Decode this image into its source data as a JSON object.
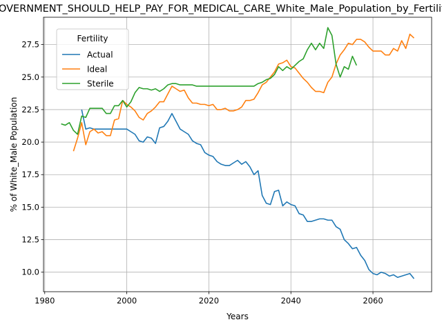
{
  "chart_data": {
    "type": "line",
    "title": "GOVERNMENT_SHOULD_HELP_PAY_FOR_MEDICAL_CARE_White_Male_Population_by_Fertility",
    "xlabel": "Years",
    "ylabel": "% of White_Male Population",
    "xlim": [
      1979.7,
      2074.3
    ],
    "ylim": [
      8.5,
      29.6
    ],
    "xticks": [
      1980,
      2000,
      2020,
      2040,
      2060
    ],
    "yticks": [
      10.0,
      12.5,
      15.0,
      17.5,
      20.0,
      22.5,
      25.0,
      27.5
    ],
    "grid": true,
    "legend": {
      "title": "Fertility",
      "position": "upper-left"
    },
    "series": [
      {
        "name": "Actual",
        "color": "#1f77b4",
        "points": [
          [
            1989,
            22.5
          ],
          [
            1990,
            21.0
          ],
          [
            1991,
            21.1
          ],
          [
            1992,
            21.0
          ],
          [
            1993,
            21.0
          ],
          [
            1994,
            21.0
          ],
          [
            1995,
            21.0
          ],
          [
            1996,
            21.0
          ],
          [
            1997,
            21.0
          ],
          [
            1998,
            21.0
          ],
          [
            1999,
            21.0
          ],
          [
            2000,
            21.0
          ],
          [
            2001,
            20.8
          ],
          [
            2002,
            20.6
          ],
          [
            2003,
            20.1
          ],
          [
            2004,
            20.0
          ],
          [
            2005,
            20.4
          ],
          [
            2006,
            20.3
          ],
          [
            2007,
            19.9
          ],
          [
            2008,
            21.1
          ],
          [
            2009,
            21.2
          ],
          [
            2010,
            21.6
          ],
          [
            2011,
            22.2
          ],
          [
            2012,
            21.6
          ],
          [
            2013,
            21.0
          ],
          [
            2014,
            20.8
          ],
          [
            2015,
            20.6
          ],
          [
            2016,
            20.1
          ],
          [
            2017,
            19.9
          ],
          [
            2018,
            19.8
          ],
          [
            2019,
            19.2
          ],
          [
            2020,
            19.0
          ],
          [
            2021,
            18.9
          ],
          [
            2022,
            18.5
          ],
          [
            2023,
            18.3
          ],
          [
            2024,
            18.2
          ],
          [
            2025,
            18.2
          ],
          [
            2026,
            18.4
          ],
          [
            2027,
            18.6
          ],
          [
            2028,
            18.3
          ],
          [
            2029,
            18.5
          ],
          [
            2030,
            18.1
          ],
          [
            2031,
            17.5
          ],
          [
            2032,
            17.8
          ],
          [
            2033,
            15.9
          ],
          [
            2034,
            15.3
          ],
          [
            2035,
            15.2
          ],
          [
            2036,
            16.2
          ],
          [
            2037,
            16.3
          ],
          [
            2038,
            15.1
          ],
          [
            2039,
            15.4
          ],
          [
            2040,
            15.2
          ],
          [
            2041,
            15.1
          ],
          [
            2042,
            14.5
          ],
          [
            2043,
            14.4
          ],
          [
            2044,
            13.9
          ],
          [
            2045,
            13.9
          ],
          [
            2046,
            14.0
          ],
          [
            2047,
            14.1
          ],
          [
            2048,
            14.1
          ],
          [
            2049,
            14.0
          ],
          [
            2050,
            14.0
          ],
          [
            2051,
            13.5
          ],
          [
            2052,
            13.3
          ],
          [
            2053,
            12.5
          ],
          [
            2054,
            12.2
          ],
          [
            2055,
            11.8
          ],
          [
            2056,
            11.9
          ],
          [
            2057,
            11.3
          ],
          [
            2058,
            10.9
          ],
          [
            2059,
            10.2
          ],
          [
            2060,
            9.9
          ],
          [
            2061,
            9.8
          ],
          [
            2062,
            10.0
          ],
          [
            2063,
            9.9
          ],
          [
            2064,
            9.7
          ],
          [
            2065,
            9.8
          ],
          [
            2066,
            9.6
          ],
          [
            2067,
            9.7
          ],
          [
            2068,
            9.8
          ],
          [
            2069,
            9.9
          ],
          [
            2070,
            9.5
          ]
        ]
      },
      {
        "name": "Ideal",
        "color": "#ff7f0e",
        "points": [
          [
            1987,
            19.3
          ],
          [
            1988,
            20.3
          ],
          [
            1989,
            21.5
          ],
          [
            1990,
            19.8
          ],
          [
            1991,
            20.8
          ],
          [
            1992,
            21.0
          ],
          [
            1993,
            20.7
          ],
          [
            1994,
            20.8
          ],
          [
            1995,
            20.5
          ],
          [
            1996,
            20.5
          ],
          [
            1997,
            21.7
          ],
          [
            1998,
            21.8
          ],
          [
            1999,
            23.2
          ],
          [
            2000,
            22.9
          ],
          [
            2001,
            22.7
          ],
          [
            2002,
            22.4
          ],
          [
            2003,
            21.9
          ],
          [
            2004,
            21.7
          ],
          [
            2005,
            22.2
          ],
          [
            2006,
            22.4
          ],
          [
            2007,
            22.7
          ],
          [
            2008,
            23.1
          ],
          [
            2009,
            23.1
          ],
          [
            2010,
            23.7
          ],
          [
            2011,
            24.3
          ],
          [
            2012,
            24.1
          ],
          [
            2013,
            23.9
          ],
          [
            2014,
            24.0
          ],
          [
            2015,
            23.4
          ],
          [
            2016,
            23.0
          ],
          [
            2017,
            23.0
          ],
          [
            2018,
            22.9
          ],
          [
            2019,
            22.9
          ],
          [
            2020,
            22.8
          ],
          [
            2021,
            22.9
          ],
          [
            2022,
            22.5
          ],
          [
            2023,
            22.5
          ],
          [
            2024,
            22.6
          ],
          [
            2025,
            22.4
          ],
          [
            2026,
            22.4
          ],
          [
            2027,
            22.5
          ],
          [
            2028,
            22.7
          ],
          [
            2029,
            23.2
          ],
          [
            2030,
            23.2
          ],
          [
            2031,
            23.3
          ],
          [
            2032,
            23.8
          ],
          [
            2033,
            24.4
          ],
          [
            2034,
            24.6
          ],
          [
            2035,
            25.0
          ],
          [
            2036,
            25.4
          ],
          [
            2037,
            26.0
          ],
          [
            2038,
            26.1
          ],
          [
            2039,
            26.3
          ],
          [
            2040,
            25.8
          ],
          [
            2041,
            25.7
          ],
          [
            2042,
            25.3
          ],
          [
            2043,
            24.9
          ],
          [
            2044,
            24.6
          ],
          [
            2045,
            24.2
          ],
          [
            2046,
            23.9
          ],
          [
            2047,
            23.9
          ],
          [
            2048,
            23.8
          ],
          [
            2049,
            24.6
          ],
          [
            2050,
            25.0
          ],
          [
            2051,
            26.0
          ],
          [
            2052,
            26.7
          ],
          [
            2053,
            27.1
          ],
          [
            2054,
            27.6
          ],
          [
            2055,
            27.5
          ],
          [
            2056,
            27.9
          ],
          [
            2057,
            27.9
          ],
          [
            2058,
            27.7
          ],
          [
            2059,
            27.3
          ],
          [
            2060,
            27.0
          ],
          [
            2061,
            27.0
          ],
          [
            2062,
            27.0
          ],
          [
            2063,
            26.7
          ],
          [
            2064,
            26.7
          ],
          [
            2065,
            27.2
          ],
          [
            2066,
            27.0
          ],
          [
            2067,
            27.8
          ],
          [
            2068,
            27.2
          ],
          [
            2069,
            28.3
          ],
          [
            2070,
            28.0
          ]
        ]
      },
      {
        "name": "Sterile",
        "color": "#2ca02c",
        "points": [
          [
            1984,
            21.4
          ],
          [
            1985,
            21.3
          ],
          [
            1986,
            21.5
          ],
          [
            1987,
            20.9
          ],
          [
            1988,
            20.6
          ],
          [
            1989,
            22.0
          ],
          [
            1990,
            21.9
          ],
          [
            1991,
            22.6
          ],
          [
            1992,
            22.6
          ],
          [
            1993,
            22.6
          ],
          [
            1994,
            22.6
          ],
          [
            1995,
            22.2
          ],
          [
            1996,
            22.2
          ],
          [
            1997,
            22.8
          ],
          [
            1998,
            22.8
          ],
          [
            1999,
            23.2
          ],
          [
            2000,
            22.7
          ],
          [
            2001,
            23.1
          ],
          [
            2002,
            23.8
          ],
          [
            2003,
            24.2
          ],
          [
            2004,
            24.1
          ],
          [
            2005,
            24.1
          ],
          [
            2006,
            24.0
          ],
          [
            2007,
            24.1
          ],
          [
            2008,
            23.9
          ],
          [
            2009,
            24.1
          ],
          [
            2010,
            24.4
          ],
          [
            2011,
            24.5
          ],
          [
            2012,
            24.5
          ],
          [
            2013,
            24.4
          ],
          [
            2014,
            24.4
          ],
          [
            2015,
            24.4
          ],
          [
            2016,
            24.4
          ],
          [
            2017,
            24.3
          ],
          [
            2018,
            24.3
          ],
          [
            2019,
            24.3
          ],
          [
            2020,
            24.3
          ],
          [
            2021,
            24.3
          ],
          [
            2022,
            24.3
          ],
          [
            2023,
            24.3
          ],
          [
            2024,
            24.3
          ],
          [
            2025,
            24.3
          ],
          [
            2026,
            24.3
          ],
          [
            2027,
            24.3
          ],
          [
            2028,
            24.3
          ],
          [
            2029,
            24.3
          ],
          [
            2030,
            24.3
          ],
          [
            2031,
            24.3
          ],
          [
            2032,
            24.5
          ],
          [
            2033,
            24.6
          ],
          [
            2034,
            24.8
          ],
          [
            2035,
            24.9
          ],
          [
            2036,
            25.2
          ],
          [
            2037,
            25.8
          ],
          [
            2038,
            25.5
          ],
          [
            2039,
            25.8
          ],
          [
            2040,
            25.6
          ],
          [
            2041,
            25.9
          ],
          [
            2042,
            26.2
          ],
          [
            2043,
            26.4
          ],
          [
            2044,
            27.1
          ],
          [
            2045,
            27.6
          ],
          [
            2046,
            27.1
          ],
          [
            2047,
            27.6
          ],
          [
            2048,
            27.2
          ],
          [
            2049,
            28.8
          ],
          [
            2050,
            28.2
          ],
          [
            2051,
            26.0
          ],
          [
            2052,
            25.0
          ],
          [
            2053,
            25.8
          ],
          [
            2054,
            25.6
          ],
          [
            2055,
            26.6
          ],
          [
            2056,
            25.9
          ]
        ]
      }
    ]
  }
}
